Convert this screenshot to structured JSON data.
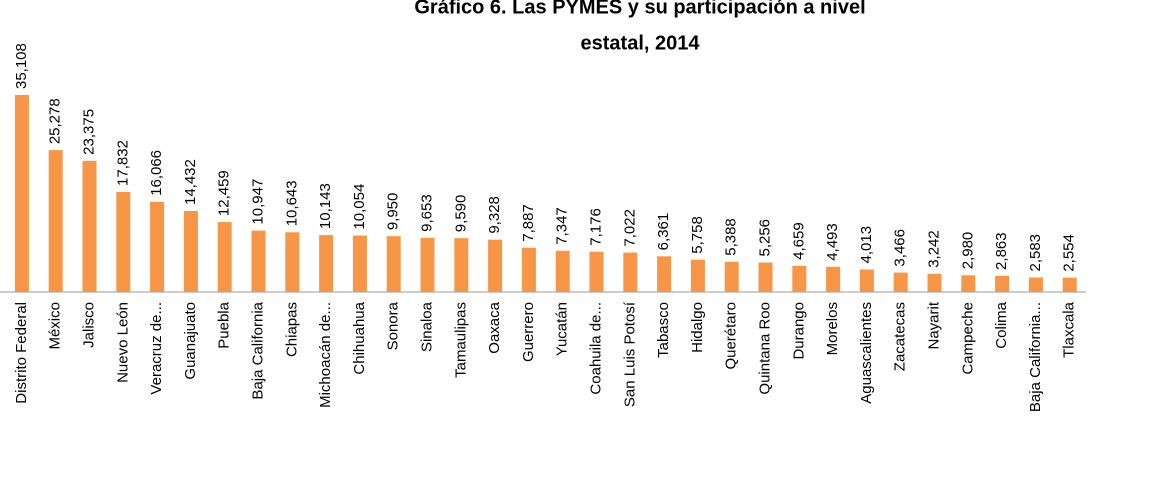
{
  "chart_data": {
    "type": "bar",
    "title": [
      "Gráfico 6. Las PYMES  y su participación a nivel",
      "estatal, 2014"
    ],
    "categories": [
      "Distrito Federal",
      "México",
      "Jalisco",
      "Nuevo León",
      "Veracruz de...",
      "Guanajuato",
      "Puebla",
      "Baja California",
      "Chiapas",
      "Michoacán de...",
      "Chihuahua",
      "Sonora",
      "Sinaloa",
      "Tamaulipas",
      "Oaxaca",
      "Guerrero",
      "Yucatán",
      "Coahuila de...",
      "San Luis Potosí",
      "Tabasco",
      "Hidalgo",
      "Querétaro",
      "Quintana Roo",
      "Durango",
      "Morelos",
      "Aguascalientes",
      "Zacatecas",
      "Nayarit",
      "Campeche",
      "Colima",
      "Baja California...",
      "Tlaxcala"
    ],
    "values": [
      35108,
      25278,
      23375,
      17832,
      16066,
      14432,
      12459,
      10947,
      10643,
      10143,
      10054,
      9950,
      9653,
      9590,
      9328,
      7887,
      7347,
      7176,
      7022,
      6361,
      5758,
      5388,
      5256,
      4659,
      4493,
      4013,
      3466,
      3242,
      2980,
      2863,
      2583,
      2554
    ],
    "value_labels": [
      "35,108",
      "25,278",
      "23,375",
      "17,832",
      "16,066",
      "14,432",
      "12,459",
      "10,947",
      "10,643",
      "10,143",
      "10,054",
      "9,950",
      "9,653",
      "9,590",
      "9,328",
      "7,887",
      "7,347",
      "7,176",
      "7,022",
      "6,361",
      "5,758",
      "5,388",
      "5,256",
      "4,659",
      "4,493",
      "4,013",
      "3,466",
      "3,242",
      "2,980",
      "2,863",
      "2,583",
      "2,554"
    ],
    "color": "#f79646"
  }
}
